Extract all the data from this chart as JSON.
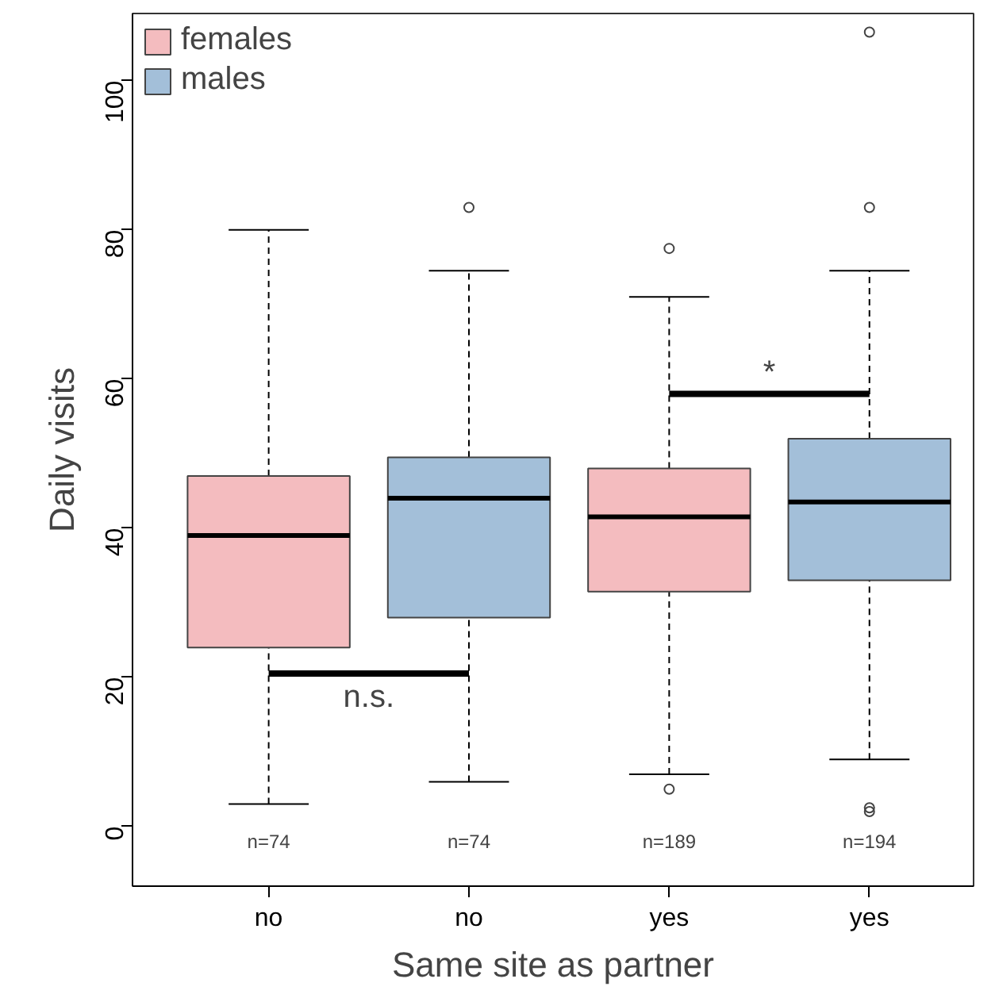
{
  "chart_data": {
    "type": "box",
    "xlabel": "Same site as partner",
    "ylabel": "Daily visits",
    "categories": [
      "no",
      "no",
      "yes",
      "yes"
    ],
    "series": [
      {
        "name": "females",
        "color": "#f4bcbf",
        "boxes": [
          {
            "low": 3,
            "q1": 24,
            "median": 39,
            "q3": 47,
            "high": 80
          },
          null,
          {
            "low": 7,
            "q1": 31.5,
            "median": 41.5,
            "q3": 48,
            "high": 71,
            "outliers": [
              5,
              77.5
            ]
          },
          null
        ]
      },
      {
        "name": "males",
        "color": "#a3bfd9",
        "boxes": [
          null,
          {
            "low": 6,
            "q1": 28,
            "median": 44,
            "q3": 49.5,
            "high": 74.5,
            "outliers": [
              83
            ]
          },
          null,
          {
            "low": 9,
            "q1": 33,
            "median": 43.5,
            "q3": 52,
            "high": 74.5,
            "outliers": [
              2,
              2.5,
              83,
              106.5
            ]
          }
        ]
      }
    ],
    "ylim": [
      -8,
      109
    ],
    "yticks": [
      0,
      20,
      40,
      60,
      80,
      100
    ],
    "grid": false,
    "legend": "top left",
    "annotations": [
      "n=74",
      "n=74",
      "n=189",
      "n=194",
      "n.s.",
      "*"
    ]
  }
}
